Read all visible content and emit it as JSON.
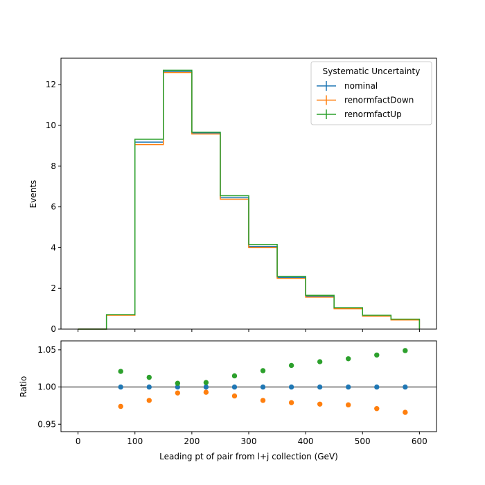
{
  "chart_data": [
    {
      "type": "line",
      "panel": "main",
      "drawstyle": "step-histogram",
      "xlim": [
        -30,
        630
      ],
      "ylim": [
        0,
        13.3
      ],
      "ylabel": "Events",
      "yticks": [
        0,
        2,
        4,
        6,
        8,
        10,
        12
      ],
      "ytick_labels": [
        "0",
        "2",
        "4",
        "6",
        "8",
        "10",
        "12"
      ],
      "bin_edges": [
        0,
        50,
        100,
        150,
        200,
        250,
        300,
        350,
        400,
        450,
        500,
        550,
        600
      ],
      "legend": {
        "title": "Systematic Uncertainty",
        "placement": "top-right"
      },
      "series": [
        {
          "name": "nominal",
          "color": "#1f77b4",
          "values": [
            0.0,
            0.7,
            9.18,
            12.65,
            9.63,
            6.45,
            4.06,
            2.54,
            1.61,
            1.03,
            0.66,
            0.47
          ]
        },
        {
          "name": "renormfactDown",
          "color": "#ff7f0e",
          "values": [
            0.0,
            0.68,
            9.06,
            12.6,
            9.58,
            6.38,
            4.0,
            2.49,
            1.57,
            1.0,
            0.64,
            0.45
          ]
        },
        {
          "name": "renormfactUp",
          "color": "#2ca02c",
          "values": [
            0.0,
            0.71,
            9.32,
            12.71,
            9.67,
            6.55,
            4.16,
            2.59,
            1.66,
            1.05,
            0.68,
            0.49
          ]
        }
      ]
    },
    {
      "type": "scatter",
      "panel": "ratio",
      "xlim": [
        -30,
        630
      ],
      "ylim": [
        0.94,
        1.062
      ],
      "xlabel": "Leading pt of pair from l+j collection (GeV)",
      "ylabel": "Ratio",
      "xticks": [
        0,
        100,
        200,
        300,
        400,
        500,
        600
      ],
      "xtick_labels": [
        "0",
        "100",
        "200",
        "300",
        "400",
        "500",
        "600"
      ],
      "yticks": [
        0.95,
        1.0,
        1.05
      ],
      "ytick_labels": [
        "0.95",
        "1.00",
        "1.05"
      ],
      "reference_line": 1.0,
      "x": [
        75,
        125,
        175,
        225,
        275,
        325,
        375,
        425,
        475,
        525,
        575
      ],
      "series": [
        {
          "name": "nominal",
          "color": "#1f77b4",
          "values": [
            1.0,
            1.0,
            1.0,
            1.0,
            1.0,
            1.0,
            1.0,
            1.0,
            1.0,
            1.0,
            1.0
          ]
        },
        {
          "name": "renormfactDown",
          "color": "#ff7f0e",
          "values": [
            0.974,
            0.982,
            0.992,
            0.993,
            0.988,
            0.982,
            0.979,
            0.977,
            0.976,
            0.971,
            0.966
          ]
        },
        {
          "name": "renormfactUp",
          "color": "#2ca02c",
          "values": [
            1.021,
            1.013,
            1.005,
            1.006,
            1.015,
            1.022,
            1.029,
            1.034,
            1.038,
            1.043,
            1.049
          ]
        }
      ]
    }
  ]
}
